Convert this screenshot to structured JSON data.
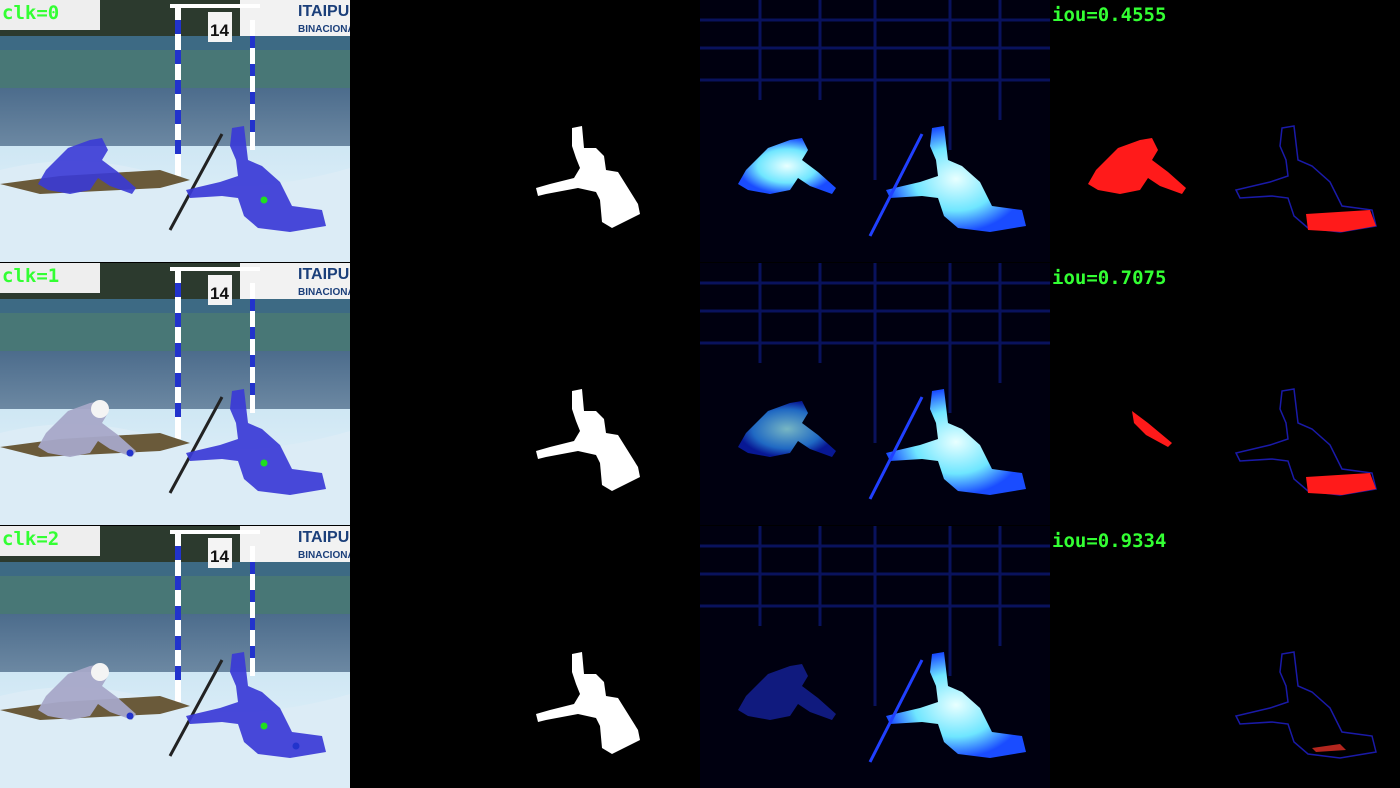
{
  "colors": {
    "label_text": "#33ff33",
    "overlay_blue": "#3a3ad6",
    "mask_white": "#ffffff",
    "heat_cyan": "#7fe9ff",
    "error_red": "#ff1a1a"
  },
  "rows": [
    {
      "clk_label": "clk=0",
      "iou_label": "iou=0.4555"
    },
    {
      "clk_label": "clk=1",
      "iou_label": "iou=0.7075"
    },
    {
      "clk_label": "clk=2",
      "iou_label": "iou=0.9334"
    }
  ],
  "scene": {
    "banner_text": "ITAIPU",
    "banner_sub": "BINACIONAL",
    "gate_number": "14"
  }
}
